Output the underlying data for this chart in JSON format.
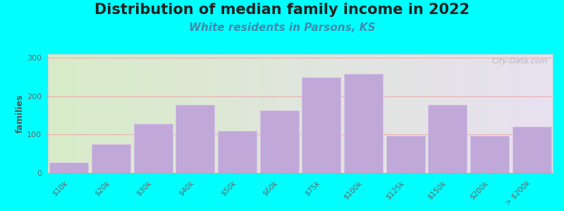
{
  "title": "Distribution of median family income in 2022",
  "subtitle": "White residents in Parsons, KS",
  "ylabel": "families",
  "background_outer": "#00FFFF",
  "background_left_color": "#d8ecc8",
  "background_right_color": "#e8e0f0",
  "bar_color": "#c0a8d8",
  "bar_edge_color": "#d8c0e8",
  "categories": [
    "$10k",
    "$20k",
    "$30k",
    "$40k",
    "$50k",
    "$60k",
    "$75k",
    "$100k",
    "$125k",
    "$150k",
    "$200k",
    "> $200k"
  ],
  "values": [
    28,
    75,
    128,
    178,
    110,
    163,
    248,
    258,
    97,
    178,
    97,
    120
  ],
  "ylim": [
    0,
    310
  ],
  "yticks": [
    0,
    100,
    200,
    300
  ],
  "title_fontsize": 15,
  "subtitle_fontsize": 11,
  "subtitle_color": "#4488aa",
  "title_color": "#222222",
  "tick_label_fontsize": 7.5,
  "ylabel_fontsize": 9,
  "watermark_text": "City-Data.com",
  "watermark_color": "#aaaaaa",
  "grid_color": "#e8b0b0",
  "grid_linewidth": 0.8
}
